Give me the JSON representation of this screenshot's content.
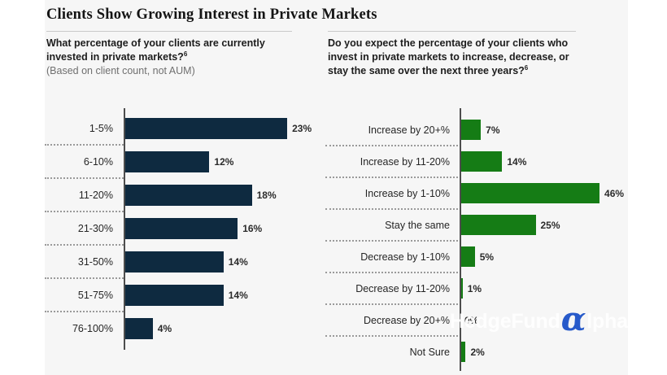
{
  "title": "Clients Show Growing Interest in Private Markets",
  "colors": {
    "page_bg": "#ffffff",
    "panel_bg": "#f6f6f6",
    "axis": "#4d4d4d",
    "separator": "#9a9a9a",
    "divider": "#c9c9c9",
    "navy": "#0e2a40",
    "green": "#157c15",
    "watermark_text": "#ffffff",
    "watermark_alpha": "#1c52c8"
  },
  "watermark": {
    "part1": "HedgeFund",
    "alpha_glyph": "α",
    "part2": "lpha"
  },
  "chart_data": [
    {
      "type": "bar",
      "orientation": "horizontal",
      "title": "What percentage of your clients are currently invested in private markets?",
      "title_lines": [
        "What percentage of your clients are currently",
        "invested in private markets?"
      ],
      "footnote_marker": "6",
      "subtitle": "(Based on client count, not AUM)",
      "categories": [
        "1-5%",
        "6-10%",
        "11-20%",
        "21-30%",
        "31-50%",
        "51-75%",
        "76-100%"
      ],
      "values": [
        23,
        12,
        18,
        16,
        14,
        14,
        4
      ],
      "value_labels": [
        "23%",
        "12%",
        "18%",
        "16%",
        "14%",
        "14%",
        "4%"
      ],
      "bar_color": "#0e2a40",
      "xlim": [
        0,
        25
      ],
      "grid": false,
      "legend": false
    },
    {
      "type": "bar",
      "orientation": "horizontal",
      "title": "Do you expect the percentage of your clients who invest in private markets to increase, decrease, or stay the same over the next three years?",
      "title_lines": [
        "Do you expect the percentage of your clients who",
        "invest in private markets to increase, decrease, or",
        "stay the same over the next three years?"
      ],
      "footnote_marker": "6",
      "subtitle": "",
      "categories": [
        "Increase by 20+%",
        "Increase by 11-20%",
        "Increase by 1-10%",
        "Stay the same",
        "Decrease by 1-10%",
        "Decrease by 11-20%",
        "Decrease by 20+%",
        "Not Sure"
      ],
      "values": [
        7,
        14,
        46,
        25,
        5,
        1,
        0,
        2
      ],
      "value_labels": [
        "7%",
        "14%",
        "46%",
        "25%",
        "5%",
        "1%",
        "0%",
        "2%"
      ],
      "bar_color": "#157c15",
      "xlim": [
        0,
        50
      ],
      "grid": false,
      "legend": false
    }
  ]
}
